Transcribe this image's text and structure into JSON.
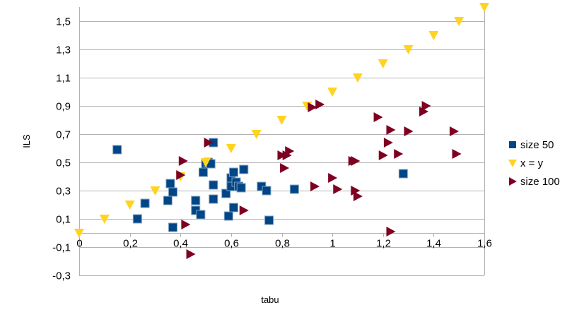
{
  "chart_data": {
    "type": "scatter",
    "title": "",
    "xlabel": "tabu",
    "ylabel": "ILS",
    "xlim": [
      0,
      1.6
    ],
    "ylim": [
      -0.3,
      1.6
    ],
    "x_ticks": [
      0,
      0.2,
      0.4,
      0.6,
      0.8,
      1.0,
      1.2,
      1.4,
      1.6
    ],
    "x_tick_labels": [
      "0",
      "0,2",
      "0,4",
      "0,6",
      "0,8",
      "1",
      "1,2",
      "1,4",
      "1,6"
    ],
    "y_ticks": [
      -0.3,
      -0.1,
      0.1,
      0.3,
      0.5,
      0.7,
      0.9,
      1.1,
      1.3,
      1.5
    ],
    "y_tick_labels": [
      "-0,3",
      "-0,1",
      "0,1",
      "0,3",
      "0,5",
      "0,7",
      "0,9",
      "1,1",
      "1,3",
      "1,5"
    ],
    "grid": "horizontal",
    "legend": "right",
    "series": [
      {
        "name": "size 50",
        "marker": "square",
        "color": "#004586",
        "points": [
          [
            0.15,
            0.59
          ],
          [
            0.23,
            0.1
          ],
          [
            0.26,
            0.21
          ],
          [
            0.35,
            0.23
          ],
          [
            0.36,
            0.35
          ],
          [
            0.37,
            0.04
          ],
          [
            0.37,
            0.29
          ],
          [
            0.46,
            0.16
          ],
          [
            0.46,
            0.23
          ],
          [
            0.48,
            0.13
          ],
          [
            0.49,
            0.43
          ],
          [
            0.5,
            0.49
          ],
          [
            0.51,
            0.5
          ],
          [
            0.52,
            0.49
          ],
          [
            0.53,
            0.64
          ],
          [
            0.53,
            0.24
          ],
          [
            0.53,
            0.34
          ],
          [
            0.58,
            0.28
          ],
          [
            0.59,
            0.12
          ],
          [
            0.6,
            0.33
          ],
          [
            0.6,
            0.39
          ],
          [
            0.61,
            0.18
          ],
          [
            0.61,
            0.43
          ],
          [
            0.62,
            0.36
          ],
          [
            0.63,
            0.33
          ],
          [
            0.64,
            0.32
          ],
          [
            0.65,
            0.45
          ],
          [
            0.72,
            0.33
          ],
          [
            0.74,
            0.3
          ],
          [
            0.75,
            0.09
          ],
          [
            0.85,
            0.31
          ],
          [
            1.28,
            0.42
          ]
        ]
      },
      {
        "name": "x = y",
        "marker": "triangle-down",
        "color": "#ffd320",
        "points": [
          [
            0,
            0
          ],
          [
            0.1,
            0.1
          ],
          [
            0.2,
            0.2
          ],
          [
            0.3,
            0.3
          ],
          [
            0.4,
            0.4
          ],
          [
            0.5,
            0.5
          ],
          [
            0.6,
            0.6
          ],
          [
            0.7,
            0.7
          ],
          [
            0.8,
            0.8
          ],
          [
            0.9,
            0.9
          ],
          [
            1.0,
            1.0
          ],
          [
            1.1,
            1.1
          ],
          [
            1.2,
            1.2
          ],
          [
            1.3,
            1.3
          ],
          [
            1.4,
            1.4
          ],
          [
            1.5,
            1.5
          ],
          [
            1.6,
            1.6
          ]
        ]
      },
      {
        "name": "size 100",
        "marker": "triangle-right",
        "color": "#7e0021",
        "points": [
          [
            0.4,
            0.41
          ],
          [
            0.41,
            0.51
          ],
          [
            0.42,
            0.06
          ],
          [
            0.44,
            -0.15
          ],
          [
            0.51,
            0.64
          ],
          [
            0.65,
            0.16
          ],
          [
            0.8,
            0.55
          ],
          [
            0.81,
            0.46
          ],
          [
            0.82,
            0.55
          ],
          [
            0.83,
            0.58
          ],
          [
            0.92,
            0.89
          ],
          [
            0.93,
            0.33
          ],
          [
            0.95,
            0.91
          ],
          [
            1.0,
            0.39
          ],
          [
            1.02,
            0.31
          ],
          [
            1.08,
            0.51
          ],
          [
            1.09,
            0.51
          ],
          [
            1.09,
            0.3
          ],
          [
            1.1,
            0.26
          ],
          [
            1.18,
            0.82
          ],
          [
            1.2,
            0.55
          ],
          [
            1.22,
            0.64
          ],
          [
            1.23,
            0.73
          ],
          [
            1.23,
            0.01
          ],
          [
            1.26,
            0.56
          ],
          [
            1.3,
            0.72
          ],
          [
            1.36,
            0.86
          ],
          [
            1.37,
            0.9
          ],
          [
            1.48,
            0.72
          ],
          [
            1.49,
            0.56
          ]
        ]
      }
    ]
  }
}
